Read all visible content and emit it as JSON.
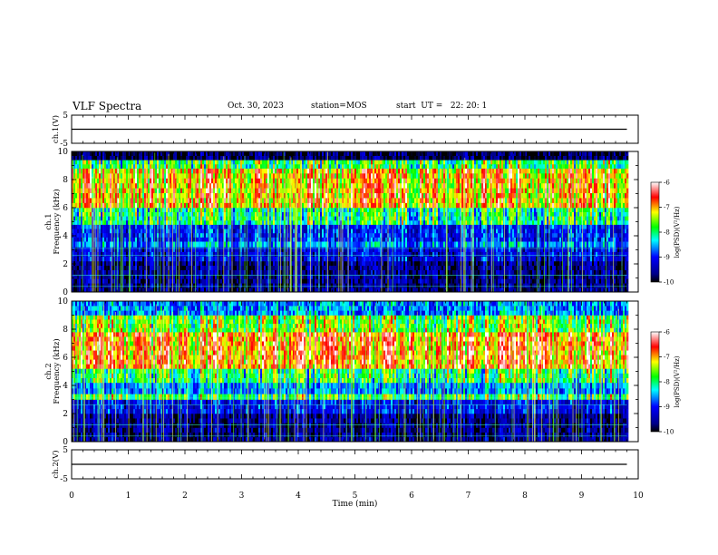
{
  "header": {
    "title": "VLF Spectra",
    "date": "Oct. 30, 2023",
    "station": "station=MOS",
    "start_ut": "start  UT =   22: 20: 1"
  },
  "chart_data": [
    {
      "type": "line",
      "name": "ch1-voltage",
      "ylabel": "ch.1(V)",
      "ylim": [
        -5,
        5
      ],
      "y_ticks": [
        "5",
        "-5"
      ],
      "xlim": [
        0,
        10
      ],
      "x": [
        0,
        9.8
      ],
      "values": [
        0,
        0
      ]
    },
    {
      "type": "heatmap",
      "name": "ch1-spectrogram",
      "ylabel": "ch.1\nFrequency (kHz)",
      "ylim": [
        0,
        10
      ],
      "y_ticks": [
        "0",
        "2",
        "4",
        "6",
        "8",
        "10"
      ],
      "xlim": [
        0,
        10
      ],
      "data_xlim": [
        0,
        9.8
      ],
      "colorbar": {
        "label": "log(PSD)(V²/Hz)",
        "range": [
          -10,
          -6
        ],
        "ticks": [
          "-6",
          "-7",
          "-8",
          "-9",
          "-10"
        ]
      },
      "bands": [
        {
          "fmin": 0,
          "fmax": 2.2,
          "level": -9.6
        },
        {
          "fmin": 2.2,
          "fmax": 3.2,
          "level": -9.2
        },
        {
          "fmin": 3.2,
          "fmax": 3.6,
          "level": -8.6
        },
        {
          "fmin": 3.6,
          "fmax": 4.8,
          "level": -9.0
        },
        {
          "fmin": 4.8,
          "fmax": 6.0,
          "level": -8.0
        },
        {
          "fmin": 6.0,
          "fmax": 8.8,
          "level": -7.0
        },
        {
          "fmin": 8.8,
          "fmax": 9.4,
          "level": -7.8
        },
        {
          "fmin": 9.4,
          "fmax": 10,
          "level": -9.8
        }
      ]
    },
    {
      "type": "heatmap",
      "name": "ch2-spectrogram",
      "ylabel": "ch.2\nFrequency (kHz)",
      "ylim": [
        0,
        10
      ],
      "y_ticks": [
        "0",
        "2",
        "4",
        "6",
        "8",
        "10"
      ],
      "xlim": [
        0,
        10
      ],
      "data_xlim": [
        0,
        9.8
      ],
      "colorbar": {
        "label": "log(PSD)(V²/Hz)",
        "range": [
          -10,
          -6
        ],
        "ticks": [
          "-6",
          "-7",
          "-8",
          "-9",
          "-10"
        ]
      },
      "bands": [
        {
          "fmin": 0,
          "fmax": 2.0,
          "level": -9.6
        },
        {
          "fmin": 2.0,
          "fmax": 3.0,
          "level": -9.1
        },
        {
          "fmin": 3.0,
          "fmax": 3.4,
          "level": -7.8
        },
        {
          "fmin": 3.4,
          "fmax": 4.2,
          "level": -8.6
        },
        {
          "fmin": 4.2,
          "fmax": 5.2,
          "level": -7.9
        },
        {
          "fmin": 5.2,
          "fmax": 7.8,
          "level": -6.8
        },
        {
          "fmin": 7.8,
          "fmax": 9.0,
          "level": -7.6
        },
        {
          "fmin": 9.0,
          "fmax": 10,
          "level": -8.6
        }
      ]
    },
    {
      "type": "line",
      "name": "ch2-voltage",
      "ylabel": "ch.2(V)",
      "ylim": [
        -5,
        5
      ],
      "y_ticks": [
        "5",
        "-5"
      ],
      "xlim": [
        0,
        10
      ],
      "x": [
        0,
        9.8
      ],
      "values": [
        0,
        0
      ]
    }
  ],
  "x_axis": {
    "label": "Time (min)",
    "ticks": [
      "0",
      "1",
      "2",
      "3",
      "4",
      "5",
      "6",
      "7",
      "8",
      "9",
      "10"
    ]
  }
}
